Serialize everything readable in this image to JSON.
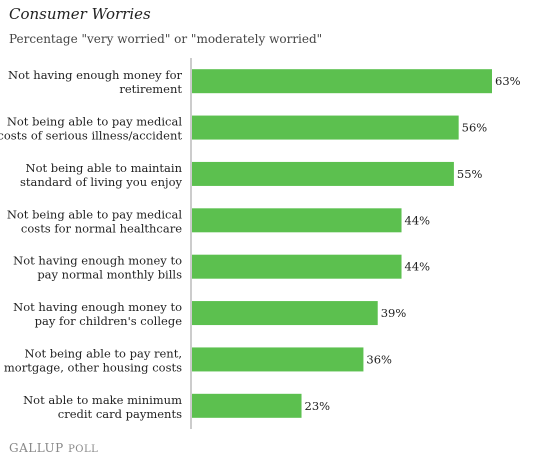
{
  "colors": {
    "bar": "#5cc04f",
    "axis": "#999999",
    "text": "#222222",
    "brand": "#888888"
  },
  "brand": {
    "name": "Gallup",
    "suffix": "Poll"
  },
  "chart_data": {
    "type": "bar",
    "orientation": "horizontal",
    "title": "Consumer Worries",
    "subtitle": "Percentage \"very worried\" or \"moderately worried\"",
    "xlabel": "",
    "ylabel": "",
    "xlim": [
      0,
      66
    ],
    "grid": false,
    "legend": "none",
    "value_suffix": "%",
    "categories": [
      [
        "Not having enough money for",
        "retirement"
      ],
      [
        "Not being able to pay medical",
        "costs of serious illness/accident"
      ],
      [
        "Not being able to maintain",
        "standard of living you enjoy"
      ],
      [
        "Not being able to pay medical",
        "costs for normal healthcare"
      ],
      [
        "Not having enough money to",
        "pay normal monthly bills"
      ],
      [
        "Not having enough money to",
        "pay for children's college"
      ],
      [
        "Not being able to pay rent,",
        "mortgage, other housing costs"
      ],
      [
        "Not able to make minimum",
        "credit card payments"
      ]
    ],
    "values": [
      63,
      56,
      55,
      44,
      44,
      39,
      36,
      23
    ]
  }
}
